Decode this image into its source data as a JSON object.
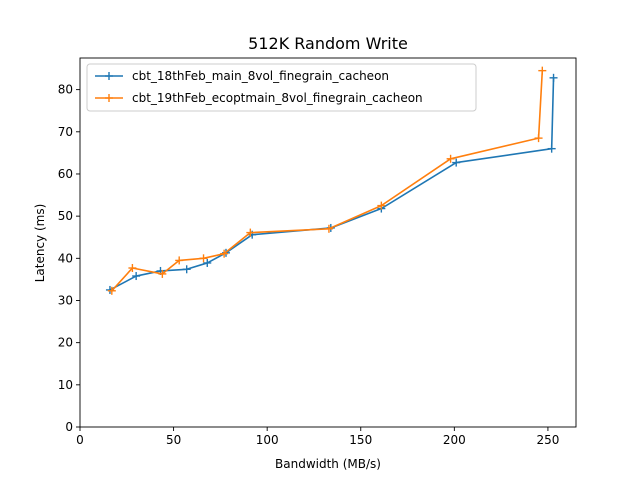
{
  "chart_data": {
    "type": "line",
    "title": "512K  Random Write",
    "xlabel": "Bandwidth (MB/s)",
    "ylabel": "Latency (ms)",
    "xlim": [
      0,
      265
    ],
    "ylim": [
      0,
      87.5
    ],
    "xticks": [
      0,
      50,
      100,
      150,
      200,
      250
    ],
    "yticks": [
      0,
      10,
      20,
      30,
      40,
      50,
      60,
      70,
      80
    ],
    "grid": false,
    "legend_position": "top-left",
    "marker": "plus",
    "series": [
      {
        "name": "cbt_18thFeb_main_8vol_finegrain_cacheon",
        "color": "#1f77b4",
        "x": [
          16,
          30,
          43,
          57,
          68,
          78,
          92,
          134,
          161,
          201,
          252,
          253
        ],
        "y": [
          32.5,
          35.8,
          37.0,
          37.4,
          38.9,
          41.3,
          45.6,
          47.2,
          51.8,
          62.7,
          66.0,
          82.8
        ]
      },
      {
        "name": "cbt_19thFeb_ecoptmain_8vol_finegrain_cacheon",
        "color": "#ff7f0e",
        "x": [
          17,
          28,
          44,
          53,
          66,
          77,
          91,
          133,
          161,
          198,
          245,
          247
        ],
        "y": [
          32.3,
          37.7,
          36.3,
          39.5,
          40.0,
          41.1,
          46.1,
          47.0,
          52.5,
          63.6,
          68.5,
          84.5
        ]
      }
    ]
  }
}
